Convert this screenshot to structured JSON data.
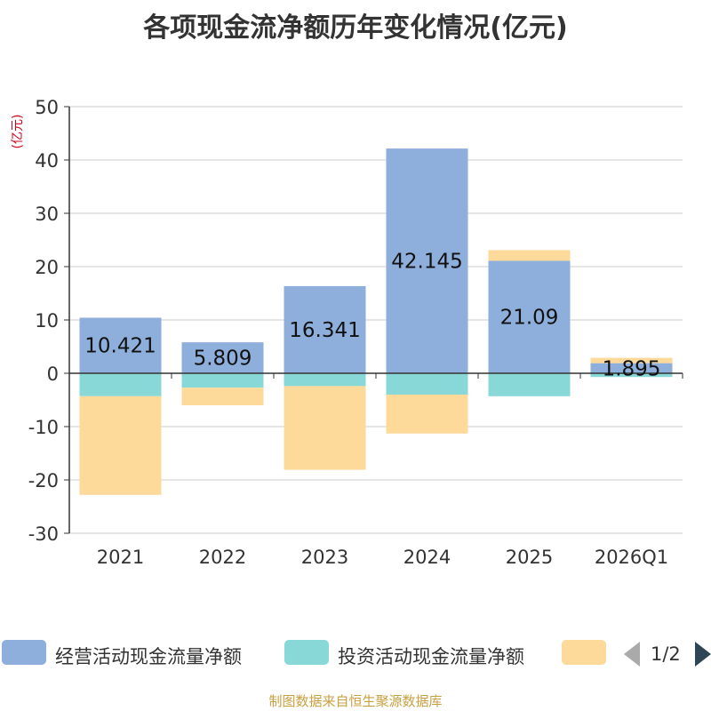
{
  "chart_data": {
    "type": "bar",
    "stacked": true,
    "title": "各项现金流净额历年变化情况(亿元)",
    "unit_label": "(亿元)",
    "categories": [
      "2021",
      "2022",
      "2023",
      "2024",
      "2025",
      "2026Q1"
    ],
    "ylim": [
      -30,
      50
    ],
    "yticks": [
      50,
      40,
      30,
      20,
      10,
      0,
      -10,
      -20,
      -30
    ],
    "grid": true,
    "series": [
      {
        "name": "经营活动现金流量净额",
        "color": "#8eaedb",
        "values": [
          10.421,
          5.809,
          16.341,
          42.145,
          21.09,
          1.895
        ],
        "labels": [
          "10.421",
          "5.809",
          "16.341",
          "42.145",
          "21.09",
          "1.895"
        ]
      },
      {
        "name": "投资活动现金流量净额",
        "color": "#88d8d8",
        "values": [
          -4.3,
          -2.7,
          -2.4,
          -4.0,
          -4.3,
          -0.7
        ]
      },
      {
        "name": "",
        "color": "#fdd99a",
        "values": [
          -18.5,
          -3.3,
          -15.7,
          -7.3,
          2.0,
          1.0
        ]
      }
    ]
  },
  "legend": {
    "items": [
      "经营活动现金流量净额",
      "投资活动现金流量净额",
      ""
    ],
    "page": "1/2"
  },
  "footer": "制图数据来自恒生聚源数据库"
}
